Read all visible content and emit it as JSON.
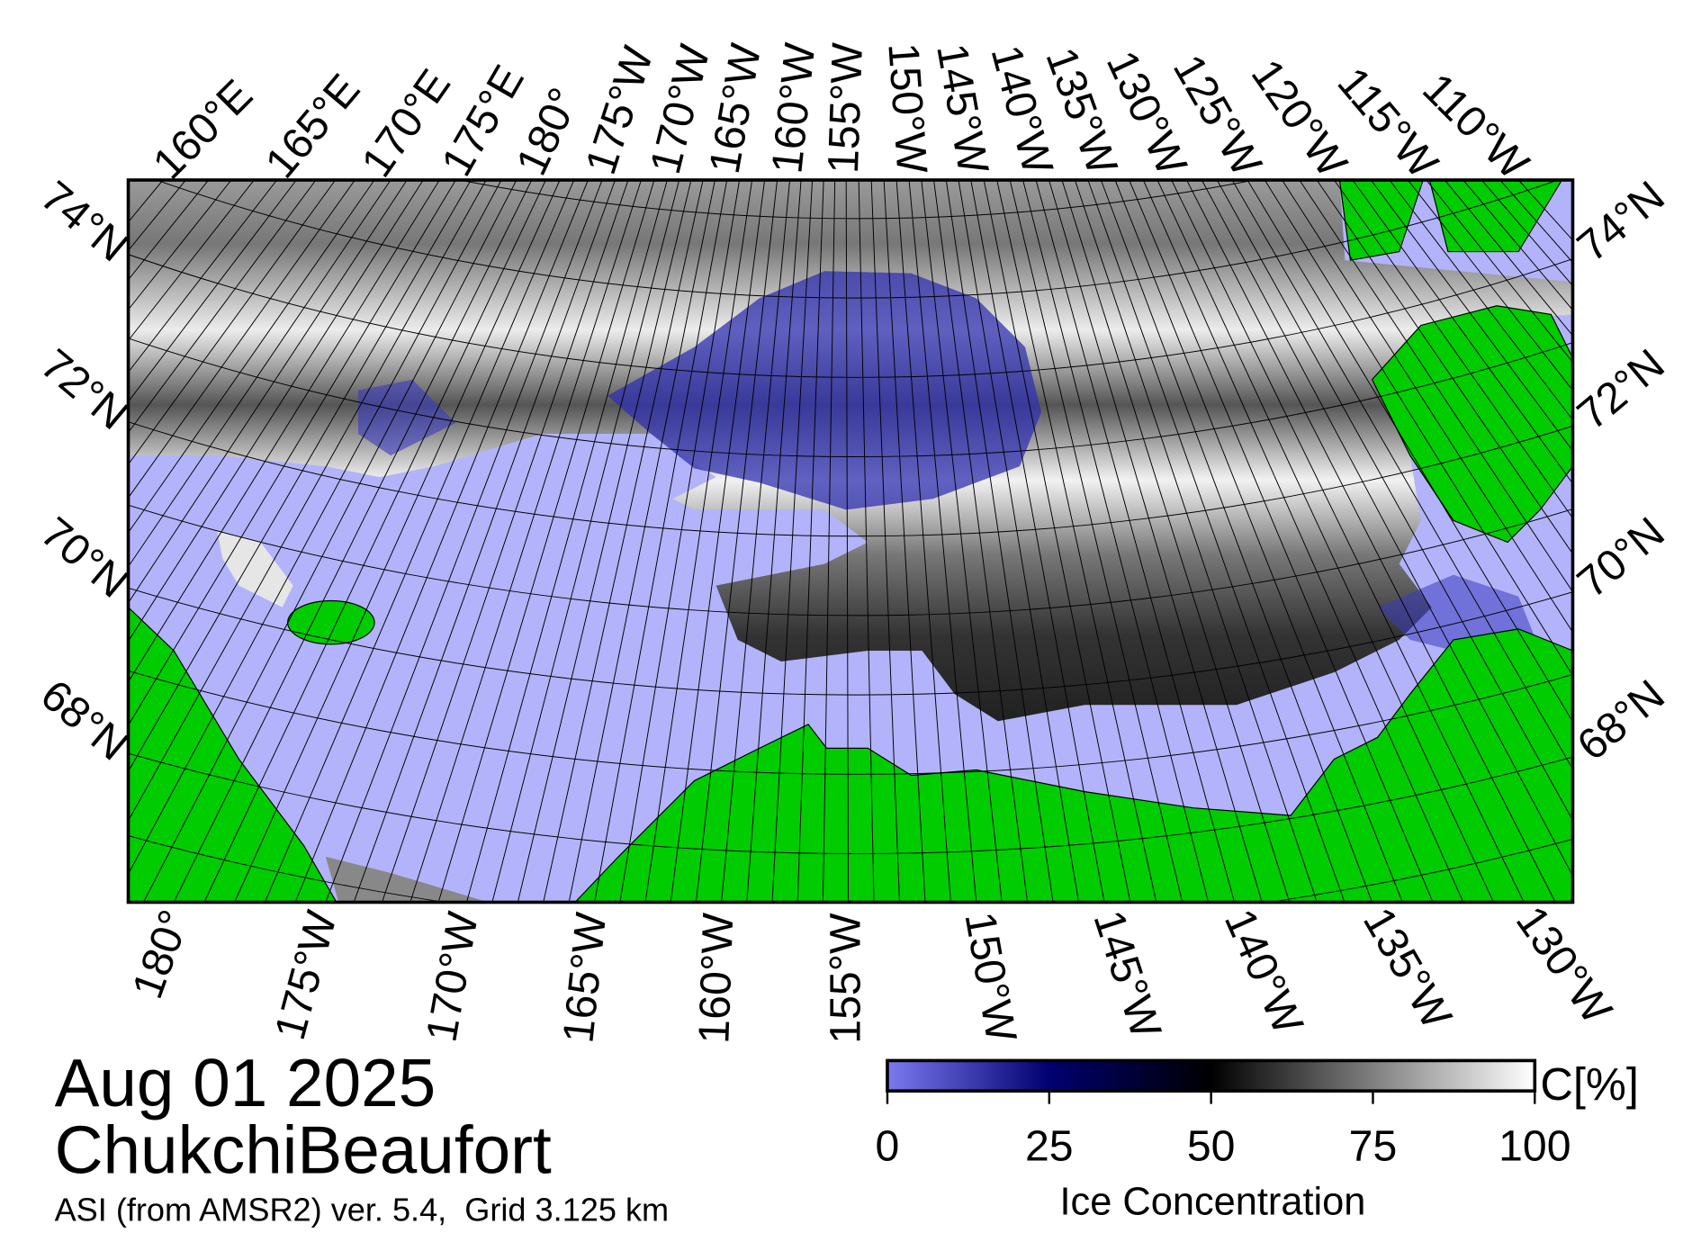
{
  "map": {
    "top_longitude_labels": [
      "160°E",
      "165°E",
      "170°E",
      "175°E",
      "180°",
      "175°W",
      "170°W",
      "165°W",
      "160°W",
      "155°W",
      "150°W",
      "145°W",
      "140°W",
      "135°W",
      "130°W",
      "125°W",
      "120°W",
      "115°W",
      "110°W"
    ],
    "bottom_longitude_labels": [
      "180°",
      "175°W",
      "170°W",
      "165°W",
      "160°W",
      "155°W",
      "150°W",
      "145°W",
      "140°W",
      "135°W",
      "130°W"
    ],
    "left_latitude_labels": [
      "74°N",
      "72°N",
      "70°N",
      "68°N"
    ],
    "right_latitude_labels": [
      "74°N",
      "72°N",
      "70°N",
      "68°N"
    ]
  },
  "date": "Aug 01 2025",
  "region": "ChukchiBeaufort",
  "caption": "ASI (from AMSR2) ver. 5.4,  Grid 3.125 km",
  "colorbar": {
    "label": "Ice Concentration",
    "unit": "C[%]",
    "lim": [
      0,
      100
    ],
    "ticks": [
      0,
      25,
      50,
      75,
      100
    ]
  }
}
